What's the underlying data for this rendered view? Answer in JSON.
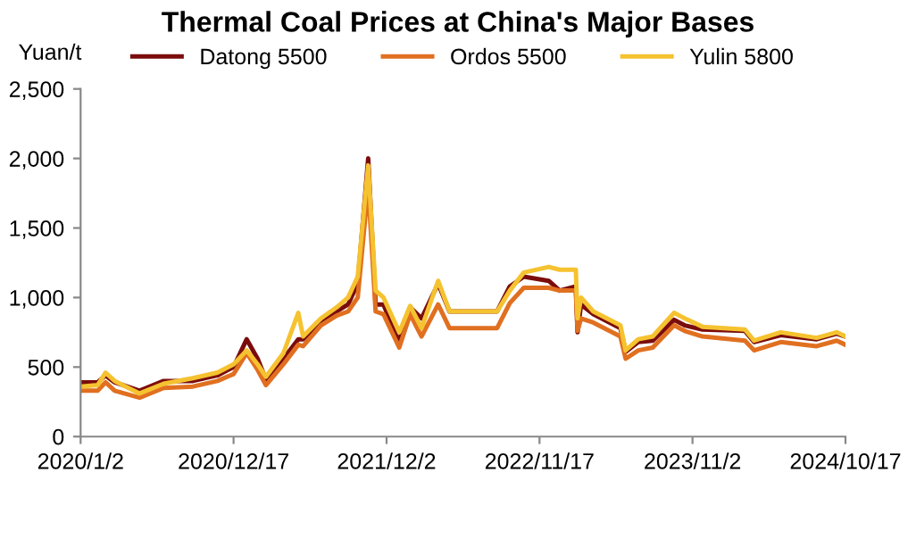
{
  "chart_data": {
    "type": "line",
    "title": "Thermal Coal Prices at China's Major Bases",
    "ylabel": "Yuan/t",
    "x": [
      "2020-01-02",
      "2020-02-10",
      "2020-02-28",
      "2020-03-20",
      "2020-05-16",
      "2020-07-10",
      "2020-09-15",
      "2020-11-10",
      "2020-12-17",
      "2021-01-16",
      "2021-02-10",
      "2021-03-01",
      "2021-04-10",
      "2021-05-14",
      "2021-05-25",
      "2021-07-05",
      "2021-08-10",
      "2021-09-05",
      "2021-09-27",
      "2021-10-21",
      "2021-11-07",
      "2021-11-25",
      "2021-12-31",
      "2022-01-25",
      "2022-02-20",
      "2022-03-30",
      "2022-04-25",
      "2022-08-12",
      "2022-09-10",
      "2022-10-12",
      "2022-12-08",
      "2023-01-02",
      "2023-02-08",
      "2023-02-12",
      "2023-02-20",
      "2023-03-20",
      "2023-05-21",
      "2023-06-02",
      "2023-07-01",
      "2023-08-03",
      "2023-09-21",
      "2023-10-15",
      "2023-11-25",
      "2024-03-01",
      "2024-03-22",
      "2024-05-22",
      "2024-08-12",
      "2024-09-27",
      "2024-10-17"
    ],
    "series": [
      {
        "name": "Datong 5500",
        "color": "#7b0c0c",
        "values": [
          390,
          390,
          440,
          390,
          330,
          400,
          400,
          440,
          500,
          700,
          560,
          410,
          560,
          700,
          700,
          830,
          900,
          950,
          1100,
          2000,
          950,
          950,
          680,
          930,
          850,
          1100,
          900,
          900,
          1080,
          1150,
          1120,
          1050,
          1080,
          750,
          950,
          880,
          780,
          610,
          680,
          690,
          840,
          800,
          770,
          760,
          680,
          730,
          700,
          740,
          720
        ]
      },
      {
        "name": "Ordos 5500",
        "color": "#e07020",
        "values": [
          330,
          330,
          390,
          330,
          280,
          350,
          360,
          400,
          450,
          600,
          480,
          370,
          520,
          660,
          650,
          800,
          870,
          900,
          1000,
          1800,
          900,
          880,
          640,
          880,
          720,
          950,
          780,
          780,
          960,
          1070,
          1070,
          1050,
          1050,
          760,
          850,
          820,
          720,
          560,
          620,
          640,
          800,
          760,
          720,
          690,
          620,
          680,
          650,
          690,
          660
        ]
      },
      {
        "name": "Yulin 5800",
        "color": "#f5c230",
        "values": [
          360,
          370,
          460,
          400,
          310,
          380,
          420,
          460,
          520,
          620,
          520,
          430,
          600,
          890,
          720,
          850,
          930,
          1000,
          1150,
          1950,
          1050,
          1000,
          750,
          940,
          780,
          1120,
          900,
          900,
          1050,
          1180,
          1220,
          1200,
          1200,
          850,
          1000,
          900,
          800,
          620,
          700,
          720,
          890,
          850,
          790,
          770,
          690,
          750,
          710,
          750,
          720
        ]
      }
    ],
    "xlim": [
      "2020-01-02",
      "2024-10-17"
    ],
    "xticks": [
      {
        "value": "2020-01-02",
        "label": "2020/1/2"
      },
      {
        "value": "2020-12-17",
        "label": "2020/12/17"
      },
      {
        "value": "2021-12-02",
        "label": "2021/12/2"
      },
      {
        "value": "2022-11-17",
        "label": "2022/11/17"
      },
      {
        "value": "2023-11-02",
        "label": "2023/11/2"
      },
      {
        "value": "2024-10-17",
        "label": "2024/10/17"
      }
    ],
    "ylim": [
      0,
      2500
    ],
    "yticks": [
      {
        "value": 0,
        "label": "0"
      },
      {
        "value": 500,
        "label": "500"
      },
      {
        "value": 1000,
        "label": "1,000"
      },
      {
        "value": 1500,
        "label": "1,500"
      },
      {
        "value": 2000,
        "label": "2,000"
      },
      {
        "value": 2500,
        "label": "2,500"
      }
    ],
    "grid": false,
    "legend": "top",
    "marker": "none",
    "line_style": "solid"
  }
}
